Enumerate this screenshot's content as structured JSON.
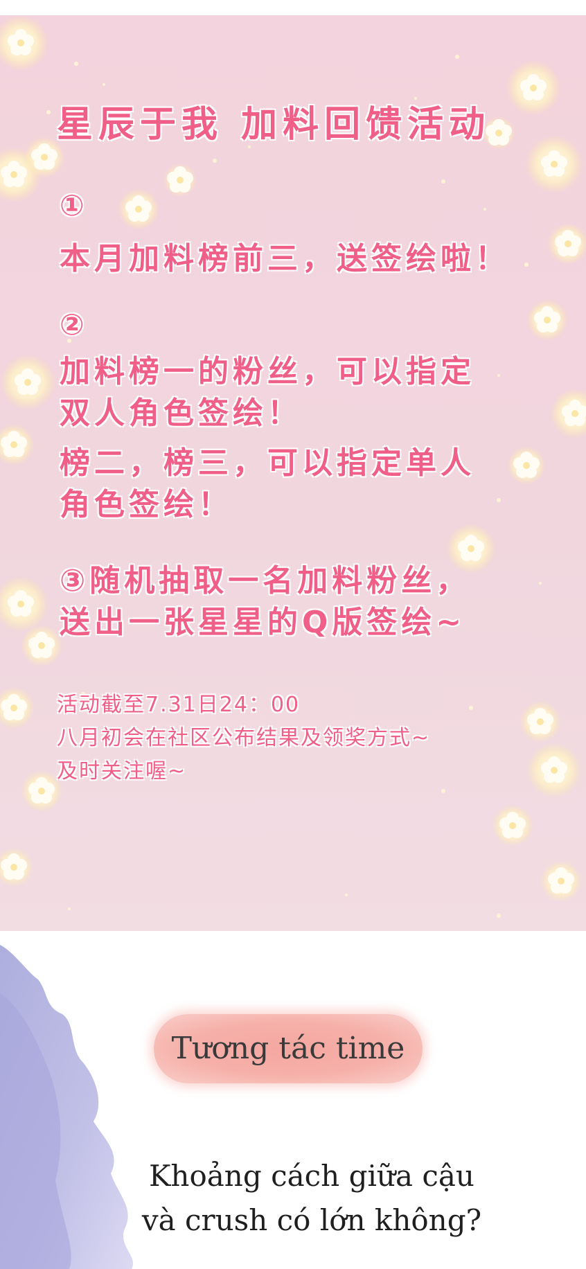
{
  "event": {
    "title": "星辰于我 加料回馈活动",
    "item1_num": "①",
    "item1_line": "本月加料榜前三，送签绘啦！",
    "item2_num": "②",
    "item2_line1": "加料榜一的粉丝，可以指定",
    "item2_line2": "双人角色签绘！",
    "item2_line3": "榜二，榜三，可以指定单人",
    "item2_line4": "角色签绘！",
    "item3_line1": "③随机抽取一名加料粉丝，",
    "item3_line2": "送出一张星星的Q版签绘~",
    "note_line1": "活动截至7.31日24：00",
    "note_line2": "八月初会在社区公布结果及领奖方式~",
    "note_line3": "及时关注喔~"
  },
  "interaction": {
    "tag": "Tương tác time",
    "question_line1": "Khoảng cách giữa cậu",
    "question_line2": "và crush có lớn không?"
  },
  "colors": {
    "panel_pink": "#f3d3dd",
    "text_pink": "#ef5f88",
    "pill_coral": "#f4a7a0",
    "watercolor_lavender": "#b7b5e3"
  },
  "decor": [
    "flower-sparkle-icon"
  ]
}
